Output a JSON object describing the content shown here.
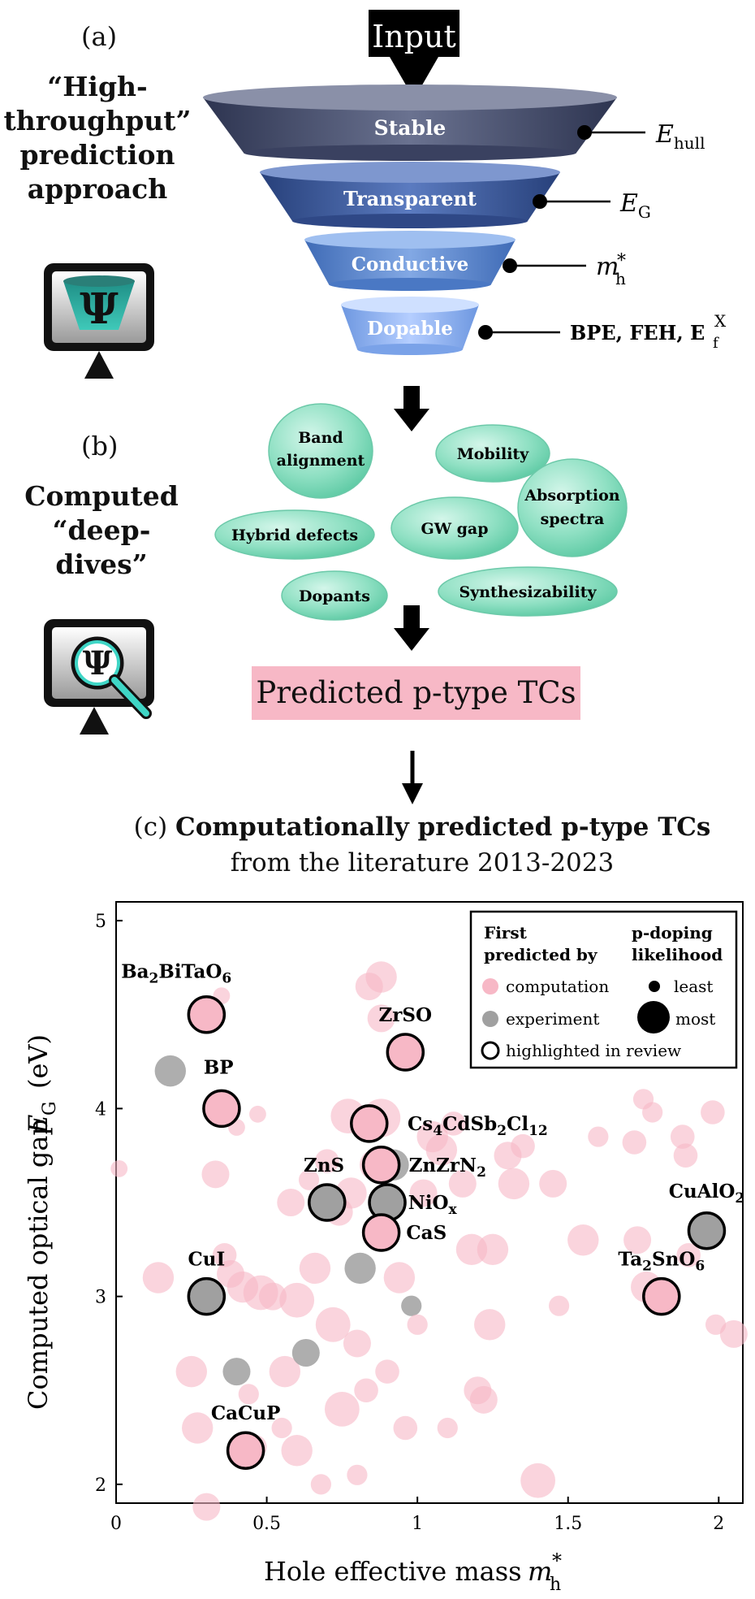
{
  "panel_a": {
    "letter": "(a)",
    "title_lines": [
      "“High-",
      "throughput”",
      "prediction",
      "approach"
    ],
    "input_label": "Input",
    "stages": [
      {
        "label": "Stable",
        "criterion": "E",
        "criterion_sub": "hull"
      },
      {
        "label": "Transparent",
        "criterion": "E",
        "criterion_sub": "G"
      },
      {
        "label": "Conductive",
        "criterion": "m",
        "criterion_sub": "h",
        "criterion_sup": "*"
      },
      {
        "label": "Dopable",
        "criterion": "BPE, FEH, E",
        "criterion_sub": "f",
        "criterion_sup": "X"
      }
    ],
    "icon_symbol": "Ψ",
    "colors": {
      "stable": "#4a5270",
      "transparent": "#3f5a9a",
      "conductive": "#5a86cc",
      "dopable": "#8fb3ee"
    }
  },
  "panel_b": {
    "letter": "(b)",
    "title_lines": [
      "Computed",
      "“deep-",
      "dives”"
    ],
    "bubbles": [
      {
        "lines": [
          "Band",
          "alignment"
        ]
      },
      {
        "lines": [
          "Mobility"
        ]
      },
      {
        "lines": [
          "Absorption",
          "spectra"
        ]
      },
      {
        "lines": [
          "Hybrid defects"
        ]
      },
      {
        "lines": [
          "GW gap"
        ]
      },
      {
        "lines": [
          "Dopants"
        ]
      },
      {
        "lines": [
          "Synthesizability"
        ]
      }
    ],
    "icon_symbol": "Ψ",
    "bubble_color": "#7fd9b8"
  },
  "result_box": {
    "label": "Predicted p-type TCs",
    "color": "#f7b8c6"
  },
  "panel_c": {
    "letter": "(c)",
    "title_bold": "Computationally predicted p-type TCs",
    "subtitle": "from the literature 2013-2023"
  },
  "chart_data": {
    "type": "scatter",
    "xlabel_text": "Hole effective mass",
    "xlabel_symbol": "m",
    "xlabel_sub": "h",
    "xlabel_sup": "*",
    "ylabel_text": "Computed optical gap",
    "ylabel_symbol": "E",
    "ylabel_sub": "G",
    "ylabel_unit": "(eV)",
    "xlim": [
      0,
      2.08
    ],
    "ylim": [
      1.9,
      5.1
    ],
    "xticks": [
      "0",
      "0.5",
      "1",
      "1.5",
      "2"
    ],
    "xtick_values": [
      0,
      0.5,
      1,
      1.5,
      2
    ],
    "yticks": [
      "2",
      "3",
      "4",
      "5"
    ],
    "ytick_values": [
      2,
      3,
      4,
      5
    ],
    "legend": {
      "col1_header": [
        "First",
        "predicted by"
      ],
      "col2_header": [
        "p-doping",
        "likelihood"
      ],
      "computation": "computation",
      "experiment": "experiment",
      "highlighted": "highlighted in review",
      "least": "least",
      "most": "most"
    },
    "colors": {
      "computation": "#f7b8c6",
      "experiment": "#a0a0a0",
      "highlight": "#000000"
    },
    "points": [
      {
        "x": 0.01,
        "y": 3.68,
        "s": 0.2,
        "t": "c"
      },
      {
        "x": 0.14,
        "y": 3.1,
        "s": 0.6,
        "t": "c"
      },
      {
        "x": 0.18,
        "y": 4.2,
        "s": 0.6,
        "t": "e"
      },
      {
        "x": 0.25,
        "y": 2.6,
        "s": 0.6,
        "t": "c"
      },
      {
        "x": 0.27,
        "y": 2.3,
        "s": 0.6,
        "t": "c"
      },
      {
        "x": 0.3,
        "y": 1.88,
        "s": 0.5,
        "t": "c"
      },
      {
        "x": 0.33,
        "y": 3.65,
        "s": 0.5,
        "t": "c"
      },
      {
        "x": 0.35,
        "y": 4.6,
        "s": 0.2,
        "t": "c"
      },
      {
        "x": 0.36,
        "y": 3.22,
        "s": 0.4,
        "t": "c"
      },
      {
        "x": 0.38,
        "y": 3.12,
        "s": 0.5,
        "t": "c"
      },
      {
        "x": 0.4,
        "y": 2.6,
        "s": 0.5,
        "t": "e"
      },
      {
        "x": 0.4,
        "y": 3.9,
        "s": 0.2,
        "t": "c"
      },
      {
        "x": 0.42,
        "y": 3.05,
        "s": 0.6,
        "t": "c"
      },
      {
        "x": 0.44,
        "y": 2.48,
        "s": 0.3,
        "t": "c"
      },
      {
        "x": 0.46,
        "y": 2.2,
        "s": 0.4,
        "t": "c"
      },
      {
        "x": 0.47,
        "y": 3.97,
        "s": 0.2,
        "t": "c"
      },
      {
        "x": 0.48,
        "y": 3.02,
        "s": 0.7,
        "t": "c"
      },
      {
        "x": 0.52,
        "y": 3.0,
        "s": 0.5,
        "t": "c"
      },
      {
        "x": 0.55,
        "y": 2.3,
        "s": 0.3,
        "t": "c"
      },
      {
        "x": 0.56,
        "y": 2.6,
        "s": 0.6,
        "t": "c"
      },
      {
        "x": 0.58,
        "y": 3.5,
        "s": 0.5,
        "t": "c"
      },
      {
        "x": 0.6,
        "y": 2.98,
        "s": 0.7,
        "t": "c"
      },
      {
        "x": 0.6,
        "y": 2.18,
        "s": 0.6,
        "t": "c"
      },
      {
        "x": 0.63,
        "y": 2.7,
        "s": 0.5,
        "t": "e"
      },
      {
        "x": 0.64,
        "y": 3.62,
        "s": 0.3,
        "t": "c"
      },
      {
        "x": 0.66,
        "y": 3.15,
        "s": 0.6,
        "t": "c"
      },
      {
        "x": 0.68,
        "y": 2.0,
        "s": 0.3,
        "t": "c"
      },
      {
        "x": 0.7,
        "y": 3.72,
        "s": 0.4,
        "t": "c"
      },
      {
        "x": 0.72,
        "y": 2.85,
        "s": 0.7,
        "t": "c"
      },
      {
        "x": 0.74,
        "y": 3.45,
        "s": 0.5,
        "t": "c"
      },
      {
        "x": 0.75,
        "y": 2.4,
        "s": 0.7,
        "t": "c"
      },
      {
        "x": 0.77,
        "y": 3.96,
        "s": 0.7,
        "t": "c"
      },
      {
        "x": 0.78,
        "y": 3.55,
        "s": 0.6,
        "t": "c"
      },
      {
        "x": 0.8,
        "y": 2.75,
        "s": 0.5,
        "t": "c"
      },
      {
        "x": 0.8,
        "y": 2.05,
        "s": 0.3,
        "t": "c"
      },
      {
        "x": 0.81,
        "y": 3.15,
        "s": 0.6,
        "t": "e"
      },
      {
        "x": 0.83,
        "y": 2.5,
        "s": 0.4,
        "t": "c"
      },
      {
        "x": 0.84,
        "y": 4.65,
        "s": 0.5,
        "t": "c"
      },
      {
        "x": 0.86,
        "y": 3.7,
        "s": 0.6,
        "t": "c"
      },
      {
        "x": 0.88,
        "y": 4.7,
        "s": 0.6,
        "t": "c"
      },
      {
        "x": 0.88,
        "y": 4.48,
        "s": 0.5,
        "t": "c"
      },
      {
        "x": 0.88,
        "y": 3.95,
        "s": 0.8,
        "t": "c"
      },
      {
        "x": 0.9,
        "y": 2.6,
        "s": 0.4,
        "t": "c"
      },
      {
        "x": 0.92,
        "y": 3.7,
        "s": 0.6,
        "t": "e"
      },
      {
        "x": 0.94,
        "y": 3.1,
        "s": 0.6,
        "t": "c"
      },
      {
        "x": 0.96,
        "y": 2.3,
        "s": 0.4,
        "t": "c"
      },
      {
        "x": 0.98,
        "y": 2.95,
        "s": 0.3,
        "t": "e"
      },
      {
        "x": 1.0,
        "y": 2.85,
        "s": 0.3,
        "t": "c"
      },
      {
        "x": 1.02,
        "y": 3.55,
        "s": 0.5,
        "t": "c"
      },
      {
        "x": 1.05,
        "y": 3.85,
        "s": 0.6,
        "t": "c"
      },
      {
        "x": 1.08,
        "y": 3.78,
        "s": 0.6,
        "t": "c"
      },
      {
        "x": 1.1,
        "y": 2.3,
        "s": 0.3,
        "t": "c"
      },
      {
        "x": 1.12,
        "y": 3.92,
        "s": 0.4,
        "t": "c"
      },
      {
        "x": 1.15,
        "y": 3.6,
        "s": 0.5,
        "t": "c"
      },
      {
        "x": 1.18,
        "y": 3.25,
        "s": 0.6,
        "t": "c"
      },
      {
        "x": 1.2,
        "y": 2.5,
        "s": 0.5,
        "t": "c"
      },
      {
        "x": 1.22,
        "y": 2.45,
        "s": 0.5,
        "t": "c"
      },
      {
        "x": 1.24,
        "y": 2.85,
        "s": 0.6,
        "t": "c"
      },
      {
        "x": 1.25,
        "y": 3.25,
        "s": 0.6,
        "t": "c"
      },
      {
        "x": 1.3,
        "y": 3.75,
        "s": 0.5,
        "t": "c"
      },
      {
        "x": 1.32,
        "y": 3.6,
        "s": 0.6,
        "t": "c"
      },
      {
        "x": 1.35,
        "y": 3.8,
        "s": 0.4,
        "t": "c"
      },
      {
        "x": 1.4,
        "y": 2.02,
        "s": 0.7,
        "t": "c"
      },
      {
        "x": 1.45,
        "y": 3.6,
        "s": 0.5,
        "t": "c"
      },
      {
        "x": 1.47,
        "y": 2.95,
        "s": 0.3,
        "t": "c"
      },
      {
        "x": 1.55,
        "y": 3.3,
        "s": 0.6,
        "t": "c"
      },
      {
        "x": 1.6,
        "y": 3.85,
        "s": 0.3,
        "t": "c"
      },
      {
        "x": 1.72,
        "y": 3.82,
        "s": 0.4,
        "t": "c"
      },
      {
        "x": 1.73,
        "y": 3.3,
        "s": 0.5,
        "t": "c"
      },
      {
        "x": 1.75,
        "y": 4.05,
        "s": 0.3,
        "t": "c"
      },
      {
        "x": 1.76,
        "y": 3.05,
        "s": 0.6,
        "t": "c"
      },
      {
        "x": 1.78,
        "y": 3.98,
        "s": 0.3,
        "t": "c"
      },
      {
        "x": 1.88,
        "y": 3.85,
        "s": 0.4,
        "t": "c"
      },
      {
        "x": 1.89,
        "y": 3.75,
        "s": 0.4,
        "t": "c"
      },
      {
        "x": 1.9,
        "y": 3.22,
        "s": 0.4,
        "t": "c"
      },
      {
        "x": 1.98,
        "y": 3.98,
        "s": 0.4,
        "t": "c"
      },
      {
        "x": 1.99,
        "y": 2.85,
        "s": 0.3,
        "t": "c"
      },
      {
        "x": 2.05,
        "y": 2.8,
        "s": 0.5,
        "t": "c"
      }
    ],
    "highlighted": [
      {
        "x": 0.3,
        "y": 4.5,
        "fill": "c",
        "label": "Ba$_2$BiTaO$_6$",
        "lx": 0.2,
        "ly": 4.73
      },
      {
        "x": 0.35,
        "y": 4.0,
        "fill": "c",
        "label": "BP",
        "lx": 0.34,
        "ly": 4.22
      },
      {
        "x": 0.96,
        "y": 4.3,
        "fill": "c",
        "label": "ZrSO",
        "lx": 0.96,
        "ly": 4.5
      },
      {
        "x": 0.84,
        "y": 3.92,
        "fill": "c",
        "label": "Cs$_4$CdSb$_2$Cl$_{12}$",
        "lx": 1.2,
        "ly": 3.92
      },
      {
        "x": 0.88,
        "y": 3.7,
        "fill": "c",
        "label": "ZnZrN$_2$",
        "lx": 1.1,
        "ly": 3.7
      },
      {
        "x": 0.7,
        "y": 3.5,
        "fill": "e",
        "label": "ZnS",
        "lx": 0.69,
        "ly": 3.7
      },
      {
        "x": 0.9,
        "y": 3.5,
        "fill": "e",
        "label": "NiO$_x$",
        "lx": 1.05,
        "ly": 3.5
      },
      {
        "x": 0.88,
        "y": 3.34,
        "fill": "c",
        "label": "CaS",
        "lx": 1.03,
        "ly": 3.34
      },
      {
        "x": 1.96,
        "y": 3.35,
        "fill": "e",
        "label": "CuAlO$_2$",
        "lx": 1.96,
        "ly": 3.56
      },
      {
        "x": 1.81,
        "y": 3.0,
        "fill": "c",
        "label": "Ta$_2$SnO$_6$",
        "lx": 1.81,
        "ly": 3.2
      },
      {
        "x": 0.3,
        "y": 3.0,
        "fill": "e",
        "label": "CuI",
        "lx": 0.3,
        "ly": 3.2
      },
      {
        "x": 0.43,
        "y": 2.18,
        "fill": "c",
        "label": "CaCuP",
        "lx": 0.43,
        "ly": 2.38
      }
    ]
  }
}
